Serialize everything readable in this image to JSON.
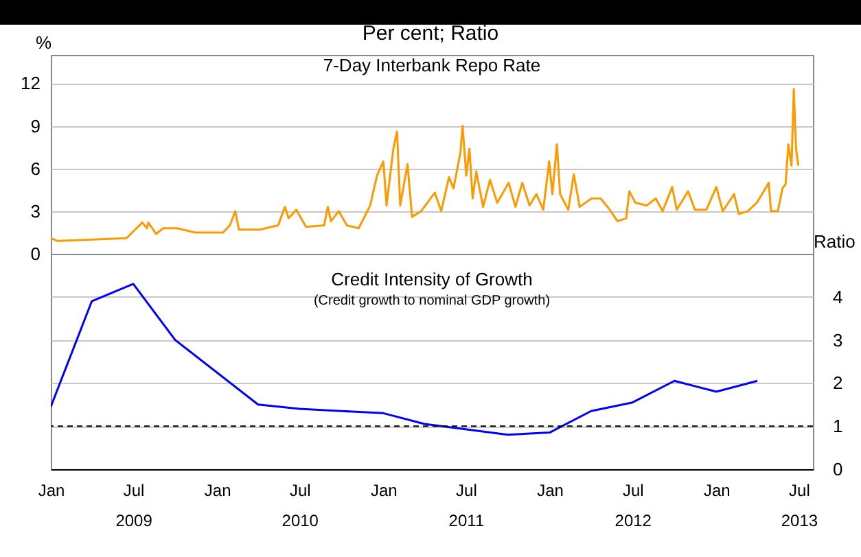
{
  "chart_data": [
    {
      "type": "line",
      "title": "7-Day Interbank Repo Rate",
      "ylabel": "%",
      "annotations": [
        "Per cent; Ratio"
      ],
      "grid": "y",
      "tick_labels": "y",
      "xlim": [
        "2009-01",
        "2013-08"
      ],
      "ylim": [
        0,
        14
      ],
      "yticks": [
        0,
        3,
        6,
        9,
        12
      ],
      "x": [
        "2009-01-01",
        "2009-01-16",
        "2009-06-16",
        "2009-07-21",
        "2009-07-31",
        "2009-08-03",
        "2009-08-20",
        "2009-09-05",
        "2009-10-05",
        "2009-11-14",
        "2010-01-14",
        "2010-01-29",
        "2010-02-10",
        "2010-02-18",
        "2010-04-05",
        "2010-05-15",
        "2010-05-30",
        "2010-06-07",
        "2010-06-24",
        "2010-07-15",
        "2010-08-24",
        "2010-09-01",
        "2010-09-08",
        "2010-09-25",
        "2010-10-13",
        "2010-11-08",
        "2010-12-03",
        "2010-12-18",
        "2011-01-01",
        "2011-01-08",
        "2011-01-23",
        "2011-01-31",
        "2011-02-07",
        "2011-02-23",
        "2011-03-05",
        "2011-03-25",
        "2011-04-24",
        "2011-05-08",
        "2011-05-25",
        "2011-06-04",
        "2011-06-19",
        "2011-06-24",
        "2011-07-02",
        "2011-07-09",
        "2011-07-16",
        "2011-07-24",
        "2011-08-08",
        "2011-08-23",
        "2011-09-08",
        "2011-10-03",
        "2011-10-18",
        "2011-11-02",
        "2011-11-18",
        "2011-12-03",
        "2011-12-18",
        "2011-12-31",
        "2012-01-07",
        "2012-01-17",
        "2012-01-24",
        "2012-02-11",
        "2012-02-23",
        "2012-03-07",
        "2012-04-02",
        "2012-04-22",
        "2012-05-12",
        "2012-05-29",
        "2012-06-17",
        "2012-06-24",
        "2012-07-07",
        "2012-08-01",
        "2012-08-21",
        "2012-09-05",
        "2012-09-26",
        "2012-10-06",
        "2012-10-31",
        "2012-11-15",
        "2012-12-10",
        "2013-01-01",
        "2013-01-15",
        "2013-02-09",
        "2013-02-19",
        "2013-03-11",
        "2013-03-31",
        "2013-04-26",
        "2013-05-01",
        "2013-05-16",
        "2013-05-26",
        "2013-06-02",
        "2013-06-08",
        "2013-06-15",
        "2013-06-20",
        "2013-06-25",
        "2013-06-30"
      ],
      "series": [
        {
          "color": "#ff9900",
          "values": [
            1.1,
            0.9,
            1.1,
            2.2,
            1.8,
            2.2,
            1.4,
            1.8,
            1.8,
            1.5,
            1.5,
            2.0,
            3.0,
            1.7,
            1.7,
            2.0,
            3.3,
            2.5,
            3.1,
            1.9,
            2.0,
            3.3,
            2.3,
            3.0,
            2.0,
            1.8,
            3.4,
            5.5,
            6.5,
            3.4,
            7.4,
            8.6,
            3.4,
            6.3,
            2.6,
            3.0,
            4.3,
            3.0,
            5.4,
            4.6,
            7.1,
            9.0,
            5.5,
            7.4,
            3.9,
            5.8,
            3.3,
            5.2,
            3.6,
            5.0,
            3.3,
            5.0,
            3.4,
            4.2,
            3.1,
            6.5,
            4.2,
            7.7,
            4.2,
            3.1,
            5.6,
            3.3,
            3.9,
            3.9,
            3.1,
            2.3,
            2.5,
            4.4,
            3.6,
            3.4,
            3.9,
            3.0,
            4.7,
            3.1,
            4.4,
            3.1,
            3.1,
            4.7,
            3.0,
            4.2,
            2.8,
            3.0,
            3.6,
            5.0,
            3.0,
            3.0,
            4.6,
            4.9,
            7.7,
            6.2,
            11.6,
            7.4,
            6.2
          ]
        }
      ]
    },
    {
      "type": "line",
      "title": "Credit Intensity of Growth",
      "subtitle": "(Credit growth to nominal GDP growth)",
      "y2label": "Ratio",
      "grid": "y",
      "xlim": [
        "2009-01",
        "2013-08"
      ],
      "xticks": [
        {
          "value": "2009-01",
          "label": "Jan"
        },
        {
          "value": "2009-07",
          "label": "Jul 2009"
        },
        {
          "value": "2010-01",
          "label": "Jan"
        },
        {
          "value": "2010-07",
          "label": "Jul 2010"
        },
        {
          "value": "2011-01",
          "label": "Jan"
        },
        {
          "value": "2011-07",
          "label": "Jul 2011"
        },
        {
          "value": "2012-01",
          "label": "Jan"
        },
        {
          "value": "2012-07",
          "label": "Jul 2012"
        },
        {
          "value": "2013-01",
          "label": "Jan"
        },
        {
          "value": "2013-07",
          "label": "Jul 2013"
        }
      ],
      "y2lim": [
        0,
        5
      ],
      "y2ticks": [
        0,
        1,
        2,
        3,
        4
      ],
      "x": [
        "2009-01",
        "2009-04",
        "2009-07",
        "2009-10",
        "2010-04",
        "2010-07",
        "2010-10",
        "2011-01",
        "2011-04",
        "2011-10",
        "2012-01",
        "2012-04",
        "2012-07",
        "2012-10",
        "2013-01",
        "2013-04"
      ],
      "series": [
        {
          "color": "#0000ff",
          "axis": "y2",
          "values": [
            1.45,
            3.9,
            4.3,
            3.0,
            1.5,
            1.4,
            1.35,
            1.3,
            1.05,
            0.8,
            0.85,
            1.35,
            1.55,
            2.05,
            1.8,
            2.05
          ]
        }
      ],
      "ref_lines": [
        {
          "axis": "y2",
          "value": 1,
          "color": "#000000",
          "line_style": "dashed"
        }
      ]
    }
  ]
}
